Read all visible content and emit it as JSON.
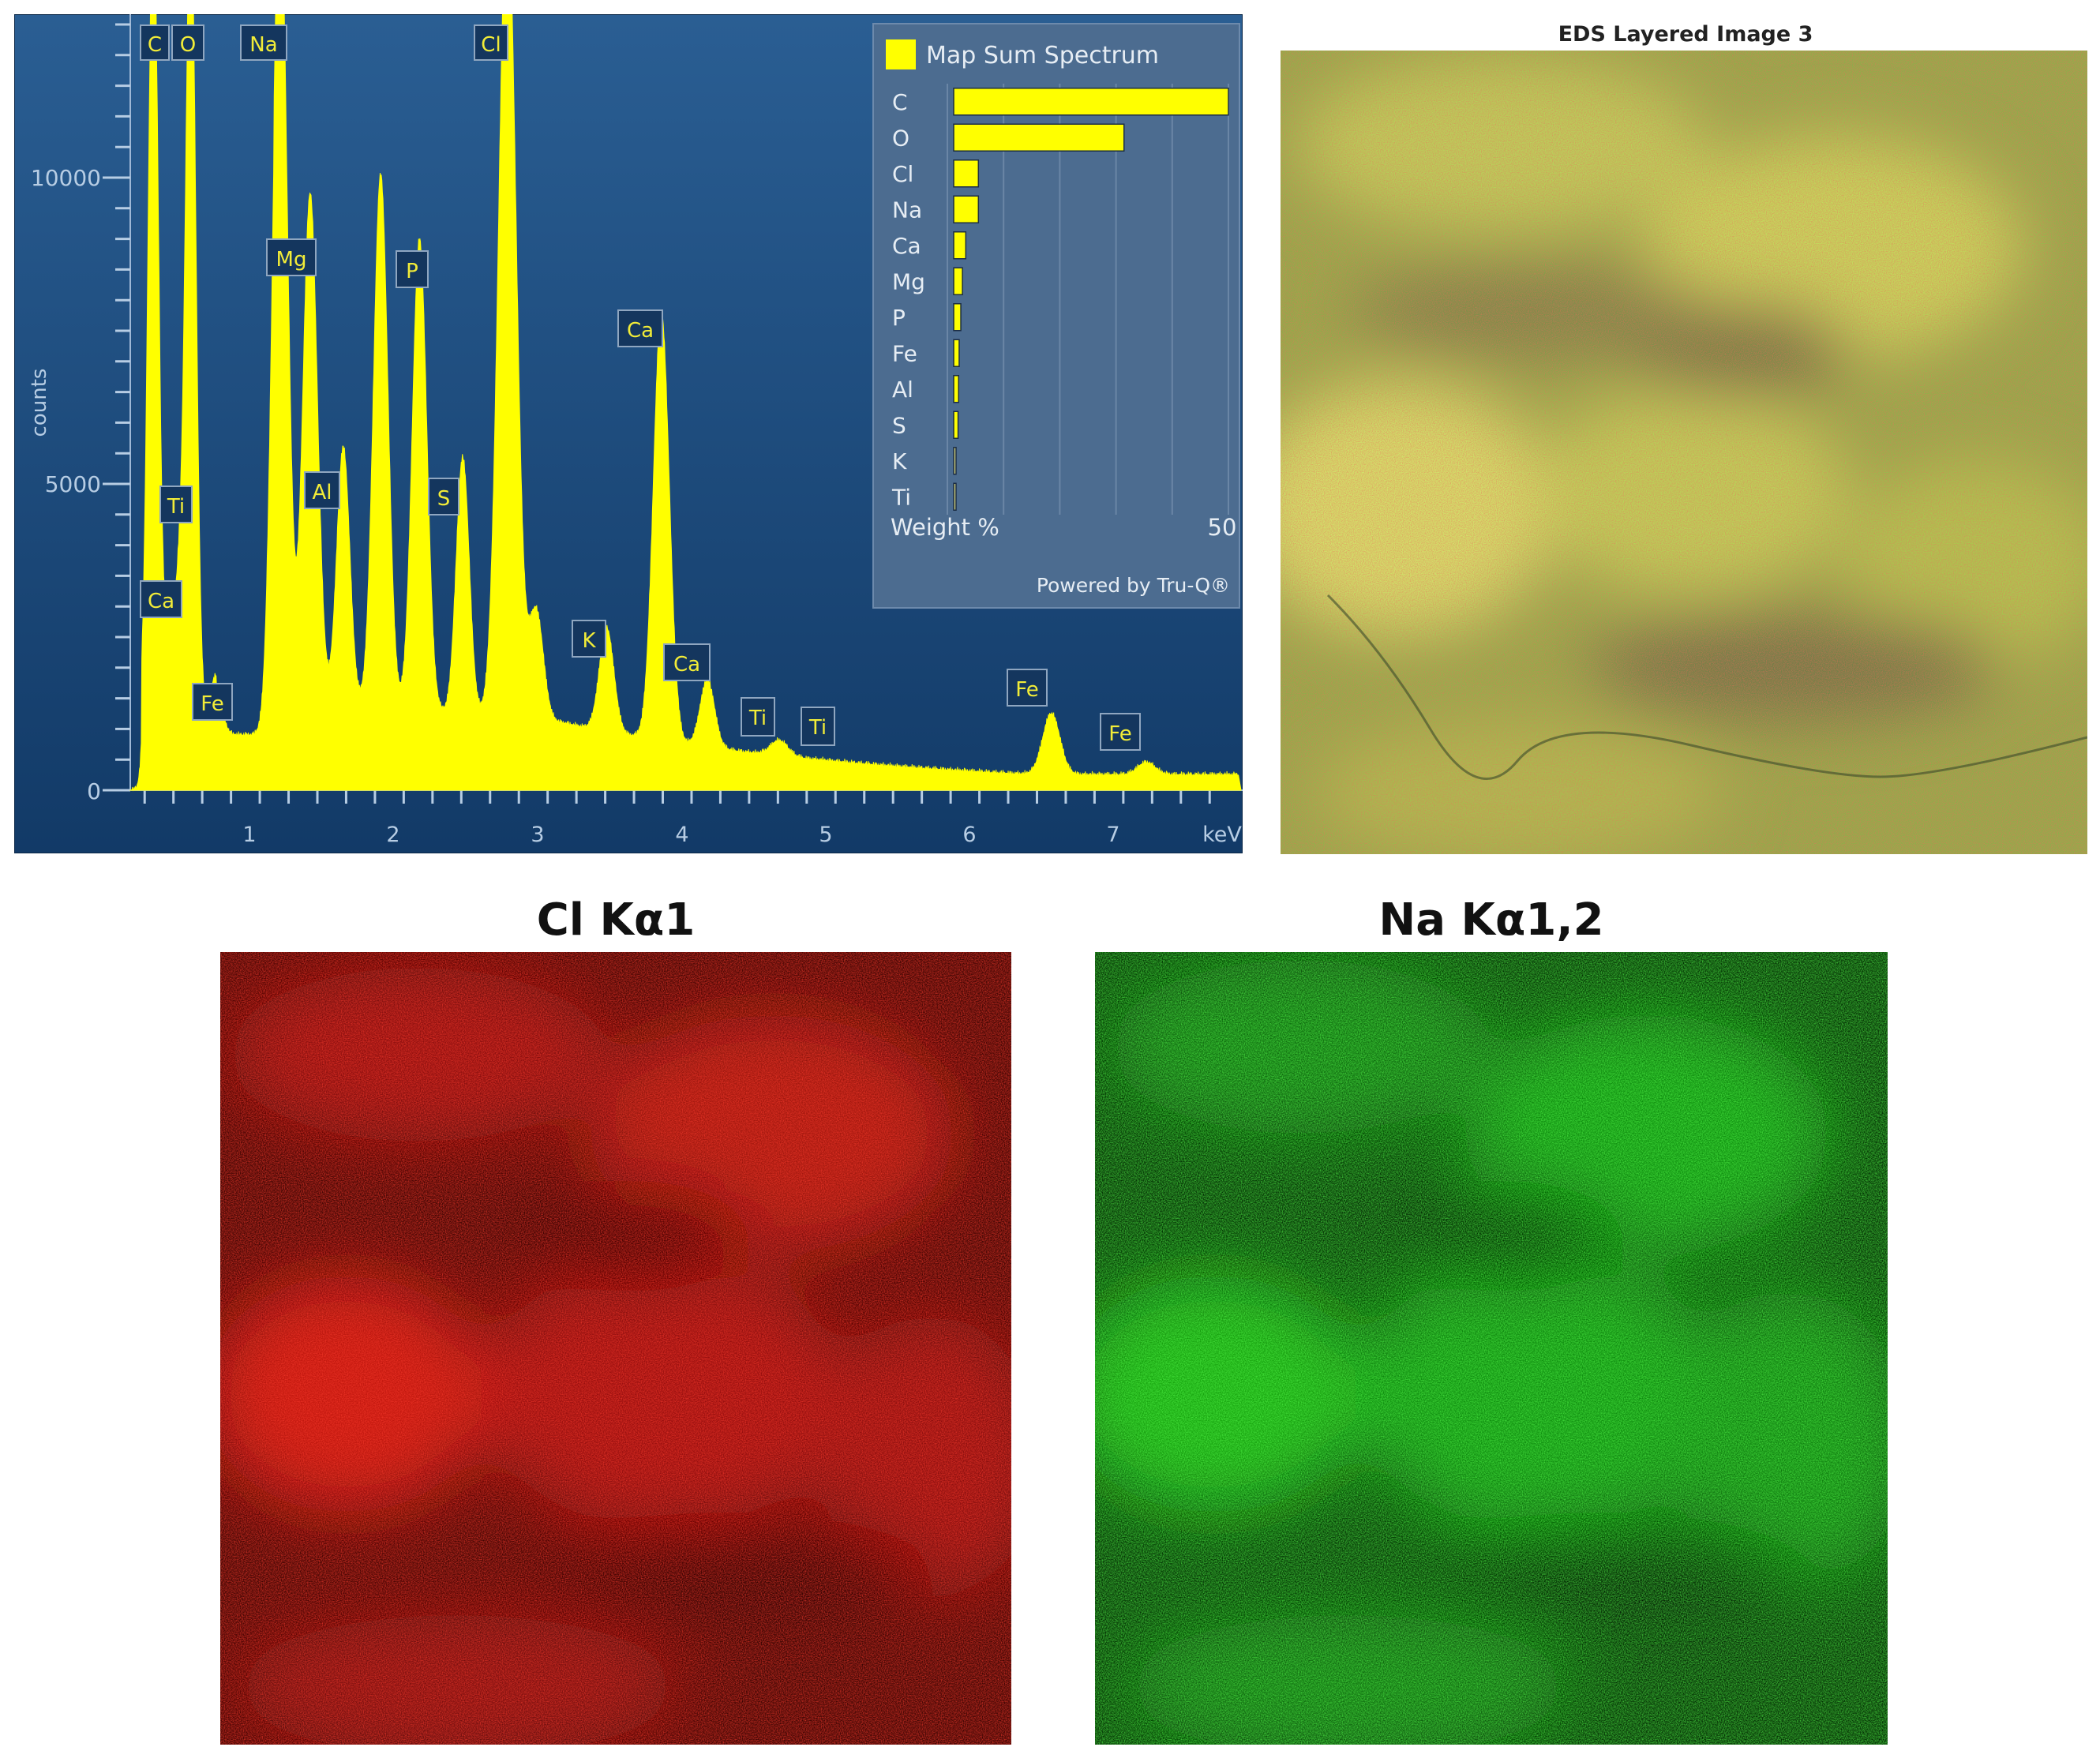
{
  "colors": {
    "panel_bg_top": "#2a5e93",
    "panel_bg_bottom": "#123a67",
    "spectrum_fill": "#ffff00",
    "legend_bg": "#4c6c90",
    "cl_map": "#e0140f",
    "na_map": "#22e61a",
    "ti_highlight": "#e03030"
  },
  "spectrum": {
    "ylabel": "counts",
    "xlabel": "keV",
    "y_ticks": [
      "0",
      "5000",
      "10000"
    ],
    "x_ticks": [
      "1",
      "2",
      "3",
      "4",
      "5",
      "6",
      "7"
    ],
    "peak_labels": [
      "C",
      "O",
      "Na",
      "Cl",
      "Mg",
      "P",
      "Al",
      "S",
      "Ti",
      "Ca",
      "Fe",
      "K",
      "Ca",
      "Ti",
      "Ti",
      "Fe",
      "Fe"
    ]
  },
  "legend": {
    "title": "Map Sum Spectrum",
    "axis_label": "Weight %",
    "axis_max": "50",
    "footer": "Powered by Tru-Q®"
  },
  "chart_data": {
    "type": "bar",
    "title": "Map Sum Spectrum",
    "xlabel": "Weight %",
    "ylabel": "",
    "categories": [
      "C",
      "O",
      "Cl",
      "Na",
      "Ca",
      "Mg",
      "P",
      "Fe",
      "Al",
      "S",
      "K",
      "Ti"
    ],
    "values": [
      50,
      31,
      4.5,
      4.5,
      2.2,
      1.6,
      1.3,
      1.0,
      0.9,
      0.8,
      0.3,
      0.2
    ],
    "xlim": [
      0,
      50
    ],
    "grid": true,
    "legend": "top"
  },
  "layered": {
    "title": "EDS Layered Image 3"
  },
  "maps": {
    "cl_title": "Cl Kα1",
    "na_title": "Na Kα1,2"
  }
}
